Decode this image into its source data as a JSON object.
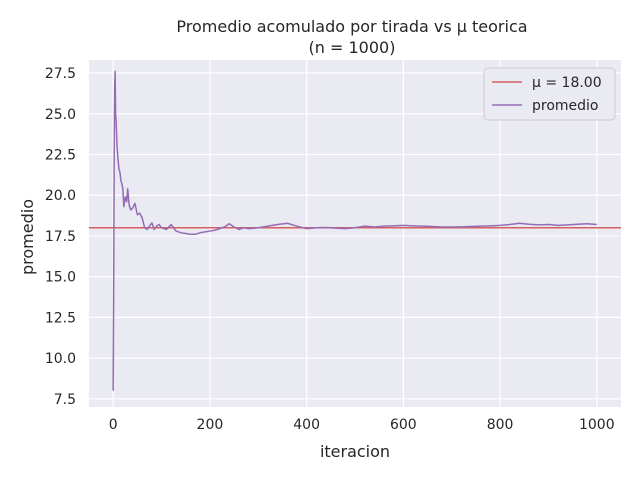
{
  "chart_data": {
    "type": "line",
    "title": "Promedio acomulado por tirada vs μ teorica",
    "subtitle": "(n = 1000)",
    "xlabel": "iteracion",
    "ylabel": "promedio",
    "xlim": [
      -50,
      1050
    ],
    "ylim": [
      7.0,
      28.3
    ],
    "x_ticks": [
      0,
      200,
      400,
      600,
      800,
      1000
    ],
    "x_tick_labels": [
      "0",
      "200",
      "400",
      "600",
      "800",
      "1000"
    ],
    "y_ticks": [
      7.5,
      10.0,
      12.5,
      15.0,
      17.5,
      20.0,
      22.5,
      25.0,
      27.5
    ],
    "y_tick_labels": [
      "7.5",
      "10.0",
      "12.5",
      "15.0",
      "17.5",
      "20.0",
      "22.5",
      "25.0",
      "27.5"
    ],
    "grid": true,
    "legend_position": "top-right",
    "reference_line": {
      "name": "μ = 18.00",
      "value": 18.0,
      "color": "#d65f5f"
    },
    "series": [
      {
        "name": "promedio",
        "color": "#956cb4",
        "x": [
          0,
          1,
          2,
          3,
          4,
          5,
          6,
          8,
          10,
          12,
          14,
          16,
          18,
          20,
          22,
          25,
          28,
          30,
          33,
          36,
          40,
          45,
          50,
          55,
          60,
          65,
          70,
          75,
          80,
          85,
          90,
          95,
          100,
          110,
          120,
          130,
          140,
          150,
          160,
          170,
          180,
          190,
          200,
          210,
          220,
          230,
          240,
          250,
          260,
          270,
          280,
          300,
          320,
          340,
          360,
          380,
          400,
          420,
          440,
          460,
          480,
          500,
          520,
          540,
          560,
          580,
          600,
          620,
          640,
          660,
          680,
          700,
          720,
          740,
          760,
          780,
          800,
          820,
          840,
          860,
          880,
          900,
          920,
          940,
          960,
          980,
          1000
        ],
        "values": [
          8.0,
          14.0,
          22.0,
          26.5,
          27.6,
          25.0,
          24.6,
          23.0,
          22.2,
          21.6,
          21.4,
          20.9,
          20.7,
          20.4,
          19.3,
          19.9,
          19.6,
          20.4,
          19.4,
          19.1,
          19.2,
          19.5,
          18.8,
          18.9,
          18.6,
          18.0,
          17.9,
          18.1,
          18.3,
          17.9,
          18.1,
          18.2,
          18.0,
          17.9,
          18.2,
          17.8,
          17.7,
          17.65,
          17.6,
          17.6,
          17.7,
          17.75,
          17.8,
          17.85,
          17.95,
          18.05,
          18.25,
          18.05,
          17.9,
          18.0,
          17.95,
          18.0,
          18.1,
          18.2,
          18.28,
          18.1,
          17.95,
          18.0,
          18.02,
          17.98,
          17.95,
          18.0,
          18.1,
          18.05,
          18.1,
          18.12,
          18.15,
          18.12,
          18.1,
          18.08,
          18.05,
          18.05,
          18.06,
          18.08,
          18.1,
          18.12,
          18.15,
          18.2,
          18.28,
          18.22,
          18.18,
          18.2,
          18.15,
          18.18,
          18.22,
          18.25,
          18.2
        ]
      }
    ]
  }
}
